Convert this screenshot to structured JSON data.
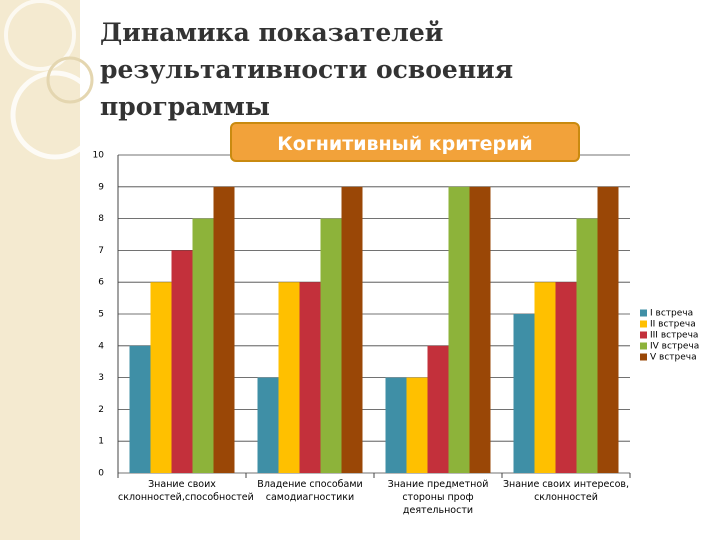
{
  "chart_data": {
    "type": "bar",
    "title": "Динамика показателей результативности освоения программы",
    "subtitle": "Когнитивный критерий",
    "categories": [
      "Знание своих склонностей,способностей",
      "Владение способами самодиагностики",
      "Знание предметной стороны проф деятельности",
      "Знание своих интересов, склонностей"
    ],
    "series": [
      {
        "name": "I встреча",
        "color": "#3f8fa6",
        "values": [
          4,
          3,
          3,
          5
        ]
      },
      {
        "name": "II встреча",
        "color": "#ffc000",
        "values": [
          6,
          6,
          3,
          6
        ]
      },
      {
        "name": "III встреча",
        "color": "#c3303b",
        "values": [
          7,
          6,
          4,
          6
        ]
      },
      {
        "name": "IV встреча",
        "color": "#8db33a",
        "values": [
          8,
          8,
          9,
          8
        ]
      },
      {
        "name": "V встреча",
        "color": "#9a4706",
        "values": [
          9,
          9,
          9,
          9
        ]
      }
    ],
    "ylim": [
      0,
      10
    ],
    "yticks": [
      0,
      1,
      2,
      3,
      4,
      5,
      6,
      7,
      8,
      9,
      10
    ],
    "grid": true,
    "legend": "right"
  }
}
